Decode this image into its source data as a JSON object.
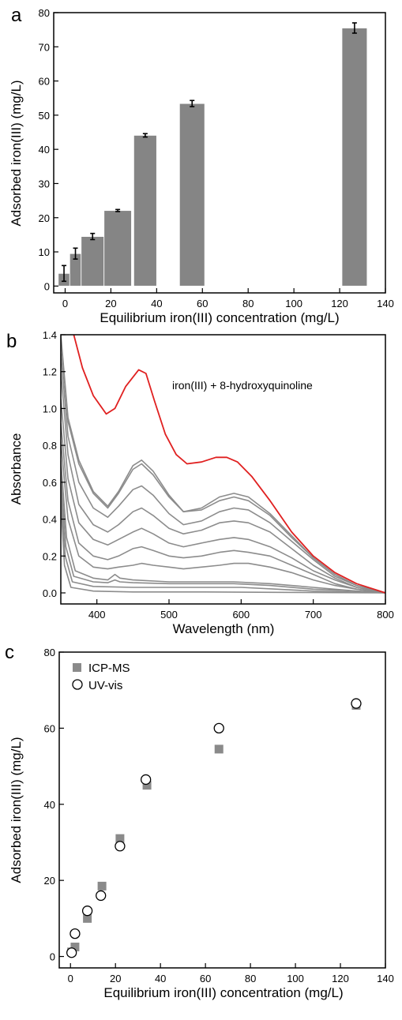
{
  "colors": {
    "bar": "#858585",
    "spectrum_gray": "#8c8c8c",
    "spectrum_red": "#e02020",
    "icp_marker": "#8a8a8a",
    "axis": "#000000"
  },
  "panels": {
    "a": {
      "letter": "a"
    },
    "b": {
      "letter": "b"
    },
    "c": {
      "letter": "c"
    }
  },
  "chart_data": [
    {
      "type": "bar",
      "panel": "a",
      "xlabel": "Equilibrium iron(III) concentration (mg/L)",
      "ylabel": "Adsorbed iron(III) (mg/L)",
      "xlim": [
        -5,
        140
      ],
      "ylim": [
        -2,
        80
      ],
      "xticks": [
        0,
        20,
        40,
        60,
        80,
        100,
        120,
        140
      ],
      "yticks": [
        0,
        10,
        20,
        30,
        40,
        50,
        60,
        70,
        80
      ],
      "bars": [
        {
          "x_start": -3,
          "x_end": 2,
          "value": 3.7,
          "error": 2.3
        },
        {
          "x_start": 2,
          "x_end": 7,
          "value": 9.5,
          "error": 1.6
        },
        {
          "x_start": 7,
          "x_end": 17,
          "value": 14.5,
          "error": 0.9
        },
        {
          "x_start": 17,
          "x_end": 29,
          "value": 22.1,
          "error": 0.3
        },
        {
          "x_start": 30,
          "x_end": 40,
          "value": 44.1,
          "error": 0.5
        },
        {
          "x_start": 50,
          "x_end": 61,
          "value": 53.4,
          "error": 0.9
        },
        {
          "x_start": 121,
          "x_end": 132,
          "value": 75.5,
          "error": 1.5
        }
      ]
    },
    {
      "type": "line",
      "panel": "b",
      "xlabel": "Wavelength (nm)",
      "ylabel": "Absorbance",
      "xlim": [
        350,
        800
      ],
      "ylim": [
        -0.06,
        1.4
      ],
      "xticks": [
        400,
        500,
        600,
        700,
        800
      ],
      "yticks": [
        0.0,
        0.2,
        0.4,
        0.6,
        0.8,
        1.0,
        1.2,
        1.4
      ],
      "annotation": "iron(III) + 8-hydroxyquinoline",
      "reference_series": {
        "label": "iron(III) + 8-hydroxyquinoline",
        "points": [
          [
            368,
            1.4
          ],
          [
            380,
            1.22
          ],
          [
            395,
            1.07
          ],
          [
            413,
            0.97
          ],
          [
            425,
            1.0
          ],
          [
            440,
            1.12
          ],
          [
            458,
            1.21
          ],
          [
            468,
            1.19
          ],
          [
            480,
            1.04
          ],
          [
            495,
            0.86
          ],
          [
            510,
            0.75
          ],
          [
            525,
            0.7
          ],
          [
            545,
            0.71
          ],
          [
            565,
            0.735
          ],
          [
            580,
            0.735
          ],
          [
            595,
            0.71
          ],
          [
            615,
            0.63
          ],
          [
            640,
            0.5
          ],
          [
            670,
            0.33
          ],
          [
            700,
            0.2
          ],
          [
            730,
            0.11
          ],
          [
            760,
            0.05
          ],
          [
            800,
            0.0
          ]
        ]
      },
      "series": [
        {
          "points": [
            [
              350,
              1.4
            ],
            [
              360,
              0.95
            ],
            [
              375,
              0.72
            ],
            [
              395,
              0.55
            ],
            [
              415,
              0.47
            ],
            [
              430,
              0.55
            ],
            [
              450,
              0.69
            ],
            [
              462,
              0.72
            ],
            [
              478,
              0.66
            ],
            [
              500,
              0.53
            ],
            [
              520,
              0.44
            ],
            [
              545,
              0.46
            ],
            [
              570,
              0.52
            ],
            [
              590,
              0.54
            ],
            [
              610,
              0.52
            ],
            [
              640,
              0.43
            ],
            [
              670,
              0.31
            ],
            [
              700,
              0.19
            ],
            [
              730,
              0.1
            ],
            [
              760,
              0.04
            ],
            [
              800,
              0.0
            ]
          ]
        },
        {
          "points": [
            [
              350,
              1.38
            ],
            [
              360,
              0.93
            ],
            [
              375,
              0.7
            ],
            [
              395,
              0.54
            ],
            [
              415,
              0.46
            ],
            [
              430,
              0.54
            ],
            [
              450,
              0.67
            ],
            [
              462,
              0.7
            ],
            [
              478,
              0.64
            ],
            [
              500,
              0.52
            ],
            [
              520,
              0.44
            ],
            [
              545,
              0.45
            ],
            [
              570,
              0.5
            ],
            [
              590,
              0.52
            ],
            [
              610,
              0.5
            ],
            [
              640,
              0.42
            ],
            [
              670,
              0.3
            ],
            [
              700,
              0.19
            ],
            [
              730,
              0.1
            ],
            [
              760,
              0.04
            ],
            [
              800,
              0.0
            ]
          ]
        },
        {
          "points": [
            [
              350,
              1.3
            ],
            [
              360,
              0.85
            ],
            [
              375,
              0.6
            ],
            [
              395,
              0.46
            ],
            [
              415,
              0.41
            ],
            [
              430,
              0.47
            ],
            [
              450,
              0.56
            ],
            [
              462,
              0.58
            ],
            [
              478,
              0.53
            ],
            [
              500,
              0.43
            ],
            [
              520,
              0.37
            ],
            [
              545,
              0.39
            ],
            [
              570,
              0.44
            ],
            [
              590,
              0.46
            ],
            [
              610,
              0.45
            ],
            [
              640,
              0.38
            ],
            [
              670,
              0.28
            ],
            [
              700,
              0.18
            ],
            [
              730,
              0.09
            ],
            [
              760,
              0.04
            ],
            [
              800,
              0.0
            ]
          ]
        },
        {
          "points": [
            [
              350,
              1.2
            ],
            [
              360,
              0.75
            ],
            [
              375,
              0.48
            ],
            [
              395,
              0.37
            ],
            [
              415,
              0.33
            ],
            [
              430,
              0.37
            ],
            [
              450,
              0.44
            ],
            [
              462,
              0.46
            ],
            [
              478,
              0.42
            ],
            [
              500,
              0.35
            ],
            [
              520,
              0.32
            ],
            [
              545,
              0.34
            ],
            [
              570,
              0.38
            ],
            [
              590,
              0.39
            ],
            [
              610,
              0.38
            ],
            [
              640,
              0.33
            ],
            [
              670,
              0.24
            ],
            [
              700,
              0.15
            ],
            [
              730,
              0.08
            ],
            [
              760,
              0.03
            ],
            [
              800,
              0.0
            ]
          ]
        },
        {
          "points": [
            [
              350,
              1.05
            ],
            [
              360,
              0.62
            ],
            [
              375,
              0.38
            ],
            [
              395,
              0.29
            ],
            [
              415,
              0.26
            ],
            [
              430,
              0.29
            ],
            [
              450,
              0.33
            ],
            [
              462,
              0.35
            ],
            [
              478,
              0.32
            ],
            [
              500,
              0.27
            ],
            [
              520,
              0.25
            ],
            [
              545,
              0.27
            ],
            [
              570,
              0.29
            ],
            [
              590,
              0.3
            ],
            [
              610,
              0.29
            ],
            [
              640,
              0.25
            ],
            [
              670,
              0.19
            ],
            [
              700,
              0.12
            ],
            [
              730,
              0.07
            ],
            [
              760,
              0.03
            ],
            [
              800,
              0.0
            ]
          ]
        },
        {
          "points": [
            [
              350,
              0.92
            ],
            [
              360,
              0.5
            ],
            [
              375,
              0.27
            ],
            [
              395,
              0.2
            ],
            [
              415,
              0.18
            ],
            [
              430,
              0.2
            ],
            [
              450,
              0.24
            ],
            [
              462,
              0.25
            ],
            [
              478,
              0.23
            ],
            [
              500,
              0.2
            ],
            [
              520,
              0.19
            ],
            [
              545,
              0.2
            ],
            [
              570,
              0.22
            ],
            [
              590,
              0.23
            ],
            [
              610,
              0.22
            ],
            [
              640,
              0.2
            ],
            [
              670,
              0.15
            ],
            [
              700,
              0.1
            ],
            [
              730,
              0.05
            ],
            [
              760,
              0.02
            ],
            [
              800,
              0.0
            ]
          ]
        },
        {
          "points": [
            [
              350,
              0.82
            ],
            [
              360,
              0.4
            ],
            [
              375,
              0.2
            ],
            [
              395,
              0.14
            ],
            [
              415,
              0.13
            ],
            [
              430,
              0.14
            ],
            [
              450,
              0.15
            ],
            [
              462,
              0.16
            ],
            [
              478,
              0.15
            ],
            [
              500,
              0.14
            ],
            [
              520,
              0.13
            ],
            [
              545,
              0.14
            ],
            [
              570,
              0.15
            ],
            [
              590,
              0.16
            ],
            [
              610,
              0.16
            ],
            [
              640,
              0.14
            ],
            [
              670,
              0.11
            ],
            [
              700,
              0.07
            ],
            [
              730,
              0.04
            ],
            [
              760,
              0.02
            ],
            [
              800,
              0.0
            ]
          ]
        },
        {
          "points": [
            [
              350,
              0.72
            ],
            [
              358,
              0.3
            ],
            [
              370,
              0.12
            ],
            [
              395,
              0.08
            ],
            [
              415,
              0.07
            ],
            [
              425,
              0.1
            ],
            [
              432,
              0.08
            ],
            [
              450,
              0.07
            ],
            [
              500,
              0.06
            ],
            [
              550,
              0.06
            ],
            [
              590,
              0.06
            ],
            [
              640,
              0.05
            ],
            [
              700,
              0.03
            ],
            [
              760,
              0.01
            ],
            [
              800,
              0.0
            ]
          ]
        },
        {
          "points": [
            [
              350,
              0.65
            ],
            [
              357,
              0.25
            ],
            [
              368,
              0.09
            ],
            [
              395,
              0.06
            ],
            [
              415,
              0.055
            ],
            [
              425,
              0.07
            ],
            [
              432,
              0.06
            ],
            [
              450,
              0.055
            ],
            [
              500,
              0.05
            ],
            [
              550,
              0.05
            ],
            [
              590,
              0.05
            ],
            [
              640,
              0.04
            ],
            [
              700,
              0.02
            ],
            [
              760,
              0.01
            ],
            [
              800,
              0.0
            ]
          ]
        },
        {
          "points": [
            [
              350,
              0.58
            ],
            [
              356,
              0.2
            ],
            [
              366,
              0.06
            ],
            [
              395,
              0.035
            ],
            [
              450,
              0.03
            ],
            [
              500,
              0.03
            ],
            [
              550,
              0.03
            ],
            [
              600,
              0.03
            ],
            [
              650,
              0.02
            ],
            [
              700,
              0.01
            ],
            [
              800,
              0.0
            ]
          ]
        },
        {
          "points": [
            [
              350,
              0.5
            ],
            [
              355,
              0.15
            ],
            [
              364,
              0.03
            ],
            [
              395,
              0.01
            ],
            [
              450,
              0.005
            ],
            [
              550,
              0.005
            ],
            [
              650,
              0.003
            ],
            [
              800,
              0.0
            ]
          ]
        }
      ]
    },
    {
      "type": "scatter",
      "panel": "c",
      "xlabel": "Equilibrium iron(III) concentration (mg/L)",
      "ylabel": "Adsorbed iron(III) (mg/L)",
      "xlim": [
        -5,
        140
      ],
      "ylim": [
        -3,
        80
      ],
      "xticks": [
        0,
        20,
        40,
        60,
        80,
        100,
        120,
        140
      ],
      "yticks": [
        0,
        20,
        40,
        60,
        80
      ],
      "legend_position": "top-left",
      "series": [
        {
          "name": "ICP-MS",
          "marker": "square",
          "points": [
            {
              "x": 0.5,
              "y": 1.2,
              "error": 0.5
            },
            {
              "x": 2.0,
              "y": 2.5,
              "error": 0.5
            },
            {
              "x": 7.5,
              "y": 10.0,
              "error": 1.0
            },
            {
              "x": 14.0,
              "y": 18.5,
              "error": 1.0
            },
            {
              "x": 22.0,
              "y": 31.0,
              "error": 1.0
            },
            {
              "x": 34.0,
              "y": 45.0,
              "error": 1.0
            },
            {
              "x": 66.0,
              "y": 54.5,
              "error": 1.0
            },
            {
              "x": 127.0,
              "y": 66.0,
              "error": 1.5
            }
          ]
        },
        {
          "name": "UV-vis",
          "marker": "circle",
          "points": [
            {
              "x": 0.5,
              "y": 1.0,
              "error": 1.5
            },
            {
              "x": 2.0,
              "y": 6.0,
              "error": 1.0
            },
            {
              "x": 7.5,
              "y": 12.0,
              "error": 1.0
            },
            {
              "x": 13.5,
              "y": 16.0,
              "error": 4.5
            },
            {
              "x": 22.0,
              "y": 29.0,
              "error": 8.5
            },
            {
              "x": 33.5,
              "y": 46.5,
              "error": 8.0
            },
            {
              "x": 66.0,
              "y": 60.0,
              "error": 6.0
            },
            {
              "x": 127.0,
              "y": 66.5,
              "error": 10.0
            }
          ]
        }
      ]
    }
  ]
}
